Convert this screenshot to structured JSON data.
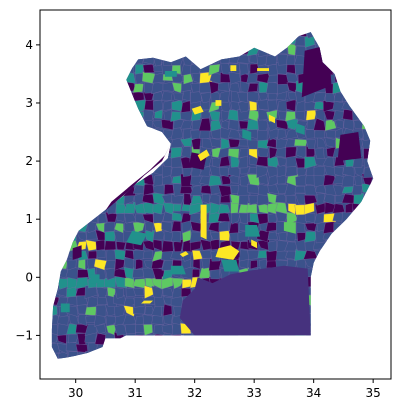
{
  "chart_data": {
    "type": "choropleth map",
    "xlabel": "",
    "ylabel": "",
    "xlim": [
      29.4,
      35.3
    ],
    "ylim": [
      -1.75,
      4.6
    ],
    "x_ticks": [
      {
        "value": 30,
        "label": "30"
      },
      {
        "value": 31,
        "label": "31"
      },
      {
        "value": 32,
        "label": "32"
      },
      {
        "value": 33,
        "label": "33"
      },
      {
        "value": 34,
        "label": "34"
      },
      {
        "value": 35,
        "label": "35"
      }
    ],
    "y_ticks": [
      {
        "value": -1,
        "label": "−1"
      },
      {
        "value": 0,
        "label": "0"
      },
      {
        "value": 1,
        "label": "1"
      },
      {
        "value": 2,
        "label": "2"
      },
      {
        "value": 3,
        "label": "3"
      },
      {
        "value": 4,
        "label": "4"
      }
    ],
    "colormap": [
      "#440154",
      "#3b528b",
      "#21918c",
      "#5ec962",
      "#fde725"
    ],
    "country_outline": [
      [
        31.05,
        3.75
      ],
      [
        31.3,
        3.78
      ],
      [
        31.6,
        3.7
      ],
      [
        31.85,
        3.8
      ],
      [
        32.1,
        3.58
      ],
      [
        32.45,
        3.75
      ],
      [
        32.75,
        3.8
      ],
      [
        33.0,
        3.95
      ],
      [
        33.35,
        3.8
      ],
      [
        33.55,
        3.95
      ],
      [
        33.75,
        4.15
      ],
      [
        33.95,
        4.22
      ],
      [
        34.1,
        3.95
      ],
      [
        34.15,
        3.7
      ],
      [
        34.35,
        3.5
      ],
      [
        34.45,
        3.2
      ],
      [
        34.6,
        2.95
      ],
      [
        34.85,
        2.6
      ],
      [
        34.95,
        2.35
      ],
      [
        34.9,
        2.0
      ],
      [
        35.0,
        1.7
      ],
      [
        34.8,
        1.3
      ],
      [
        34.55,
        1.0
      ],
      [
        34.3,
        0.75
      ],
      [
        34.1,
        0.45
      ],
      [
        34.0,
        0.25
      ],
      [
        33.95,
        0.0
      ],
      [
        33.95,
        -0.5
      ],
      [
        33.95,
        -1.0
      ],
      [
        33.0,
        -1.0
      ],
      [
        32.0,
        -1.0
      ],
      [
        31.7,
        -1.0
      ],
      [
        30.85,
        -1.0
      ],
      [
        30.75,
        -1.05
      ],
      [
        30.5,
        -1.05
      ],
      [
        30.45,
        -1.2
      ],
      [
        30.2,
        -1.3
      ],
      [
        30.0,
        -1.35
      ],
      [
        29.85,
        -1.38
      ],
      [
        29.7,
        -1.4
      ],
      [
        29.6,
        -1.2
      ],
      [
        29.6,
        -0.9
      ],
      [
        29.62,
        -0.5
      ],
      [
        29.7,
        -0.2
      ],
      [
        29.75,
        0.1
      ],
      [
        29.85,
        0.3
      ],
      [
        29.95,
        0.6
      ],
      [
        30.05,
        0.8
      ],
      [
        30.3,
        1.0
      ],
      [
        30.55,
        1.2
      ],
      [
        30.8,
        1.4
      ],
      [
        31.0,
        1.6
      ],
      [
        31.3,
        1.8
      ],
      [
        31.55,
        2.05
      ],
      [
        31.6,
        2.3
      ],
      [
        31.45,
        2.5
      ],
      [
        31.2,
        2.6
      ],
      [
        31.05,
        2.9
      ],
      [
        30.95,
        3.15
      ],
      [
        30.85,
        3.4
      ],
      [
        30.95,
        3.6
      ],
      [
        31.05,
        3.75
      ]
    ],
    "lake_victoria_region": [
      [
        32.05,
        0.0
      ],
      [
        32.3,
        -0.1
      ],
      [
        32.6,
        0.05
      ],
      [
        32.85,
        0.1
      ],
      [
        33.15,
        0.15
      ],
      [
        33.5,
        0.2
      ],
      [
        33.9,
        0.15
      ],
      [
        33.95,
        -1.0
      ],
      [
        32.0,
        -1.0
      ],
      [
        31.75,
        -0.7
      ],
      [
        31.8,
        -0.4
      ],
      [
        32.0,
        -0.2
      ],
      [
        32.05,
        0.0
      ]
    ],
    "lake_albert_band": [
      [
        30.5,
        1.15
      ],
      [
        30.85,
        1.45
      ],
      [
        31.15,
        1.75
      ],
      [
        31.45,
        2.0
      ],
      [
        31.6,
        2.3
      ],
      [
        31.5,
        2.1
      ],
      [
        31.25,
        1.85
      ],
      [
        30.95,
        1.6
      ],
      [
        30.6,
        1.3
      ],
      [
        30.5,
        1.15
      ]
    ],
    "highlight_regions": [
      {
        "name": "",
        "color_index": 4,
        "points": [
          [
            32.1,
            0.7
          ],
          [
            32.2,
            0.65
          ],
          [
            32.2,
            1.25
          ],
          [
            32.1,
            1.25
          ]
        ]
      },
      {
        "name": "",
        "color_index": 4,
        "points": [
          [
            32.35,
            0.35
          ],
          [
            32.65,
            0.3
          ],
          [
            32.75,
            0.45
          ],
          [
            32.6,
            0.55
          ],
          [
            32.4,
            0.5
          ]
        ]
      },
      {
        "name": "",
        "color_index": 4,
        "points": [
          [
            32.0,
            2.8
          ],
          [
            32.15,
            2.85
          ],
          [
            32.1,
            2.95
          ],
          [
            31.95,
            2.9
          ]
        ]
      },
      {
        "name": "",
        "color_index": 4,
        "points": [
          [
            32.1,
            2.0
          ],
          [
            32.25,
            2.1
          ],
          [
            32.2,
            2.2
          ],
          [
            32.05,
            2.1
          ]
        ]
      },
      {
        "name": "",
        "color_index": 4,
        "points": [
          [
            33.05,
            3.55
          ],
          [
            33.25,
            3.55
          ],
          [
            33.25,
            3.6
          ],
          [
            33.05,
            3.6
          ]
        ]
      },
      {
        "name": "",
        "color_index": 4,
        "points": [
          [
            32.6,
            3.55
          ],
          [
            32.7,
            3.55
          ],
          [
            32.7,
            3.65
          ],
          [
            32.6,
            3.65
          ]
        ]
      },
      {
        "name": "",
        "color_index": 4,
        "points": [
          [
            32.35,
            2.95
          ],
          [
            32.45,
            2.95
          ],
          [
            32.45,
            3.05
          ],
          [
            32.35,
            3.05
          ]
        ]
      },
      {
        "name": "",
        "color_index": 4,
        "points": [
          [
            33.25,
            2.7
          ],
          [
            33.35,
            2.65
          ],
          [
            33.35,
            2.75
          ],
          [
            33.25,
            2.8
          ]
        ]
      },
      {
        "name": "",
        "color_index": 4,
        "points": [
          [
            31.8,
            0.35
          ],
          [
            31.9,
            0.4
          ],
          [
            31.85,
            0.45
          ],
          [
            31.75,
            0.4
          ]
        ]
      },
      {
        "name": "",
        "color_index": 4,
        "points": [
          [
            31.15,
            -0.4
          ],
          [
            31.3,
            -0.4
          ],
          [
            31.25,
            -0.45
          ],
          [
            31.1,
            -0.45
          ]
        ]
      },
      {
        "name": "",
        "color_index": 4,
        "points": [
          [
            32.95,
            0.55
          ],
          [
            33.05,
            0.5
          ],
          [
            33.05,
            0.6
          ],
          [
            32.95,
            0.65
          ]
        ]
      }
    ],
    "accent_regions": [
      {
        "name": "",
        "color_index": 2,
        "points": [
          [
            30.85,
            0.6
          ],
          [
            31.1,
            0.55
          ],
          [
            31.2,
            0.75
          ],
          [
            30.95,
            0.8
          ]
        ]
      },
      {
        "name": "",
        "color_index": 2,
        "points": [
          [
            31.6,
            0.05
          ],
          [
            31.85,
            0.05
          ],
          [
            31.8,
            0.2
          ],
          [
            31.6,
            0.2
          ]
        ]
      },
      {
        "name": "",
        "color_index": 2,
        "points": [
          [
            32.85,
            0.7
          ],
          [
            33.1,
            0.7
          ],
          [
            33.05,
            0.9
          ],
          [
            32.85,
            0.9
          ]
        ]
      },
      {
        "name": "",
        "color_index": 3,
        "points": [
          [
            33.5,
            0.8
          ],
          [
            33.7,
            0.75
          ],
          [
            33.7,
            0.95
          ],
          [
            33.5,
            0.95
          ]
        ]
      },
      {
        "name": "",
        "color_index": 2,
        "points": [
          [
            32.5,
            0.1
          ],
          [
            32.75,
            0.1
          ],
          [
            32.7,
            0.3
          ],
          [
            32.45,
            0.3
          ]
        ]
      },
      {
        "name": "",
        "color_index": 2,
        "points": [
          [
            31.5,
            3.45
          ],
          [
            31.7,
            3.45
          ],
          [
            31.7,
            3.55
          ],
          [
            31.5,
            3.55
          ]
        ]
      },
      {
        "name": "",
        "color_index": 2,
        "points": [
          [
            33.7,
            2.5
          ],
          [
            33.85,
            2.45
          ],
          [
            33.85,
            2.6
          ],
          [
            33.7,
            2.65
          ]
        ]
      },
      {
        "name": "",
        "color_index": 2,
        "points": [
          [
            32.8,
            2.4
          ],
          [
            32.95,
            2.35
          ],
          [
            32.95,
            2.5
          ],
          [
            32.8,
            2.55
          ]
        ]
      },
      {
        "name": "",
        "color_index": 2,
        "points": [
          [
            30.25,
            -0.1
          ],
          [
            30.4,
            -0.1
          ],
          [
            30.4,
            0.05
          ],
          [
            30.25,
            0.05
          ]
        ]
      },
      {
        "name": "",
        "color_index": 2,
        "points": [
          [
            29.75,
            -0.6
          ],
          [
            29.9,
            -0.6
          ],
          [
            29.9,
            -0.45
          ],
          [
            29.75,
            -0.45
          ]
        ]
      }
    ],
    "dark_regions": [
      {
        "name": "",
        "color_index": 0,
        "points": [
          [
            33.8,
            3.1
          ],
          [
            34.3,
            3.3
          ],
          [
            34.25,
            4.0
          ],
          [
            33.85,
            3.9
          ]
        ]
      },
      {
        "name": "",
        "color_index": 0,
        "points": [
          [
            31.1,
            2.0
          ],
          [
            31.6,
            2.15
          ],
          [
            31.55,
            2.35
          ],
          [
            31.1,
            2.3
          ]
        ]
      },
      {
        "name": "",
        "color_index": 0,
        "points": [
          [
            30.9,
            1.65
          ],
          [
            31.25,
            1.7
          ],
          [
            31.2,
            1.95
          ],
          [
            30.95,
            1.9
          ]
        ]
      },
      {
        "name": "",
        "color_index": 0,
        "points": [
          [
            31.9,
            1.9
          ],
          [
            32.15,
            1.85
          ],
          [
            32.2,
            2.1
          ],
          [
            31.95,
            2.15
          ]
        ]
      },
      {
        "name": "",
        "color_index": 0,
        "points": [
          [
            34.4,
            2.0
          ],
          [
            34.8,
            2.05
          ],
          [
            34.75,
            2.5
          ],
          [
            34.45,
            2.45
          ]
        ]
      },
      {
        "name": "",
        "color_index": 0,
        "points": [
          [
            29.95,
            0.3
          ],
          [
            30.1,
            0.35
          ],
          [
            30.1,
            0.55
          ],
          [
            29.95,
            0.5
          ]
        ]
      }
    ]
  }
}
